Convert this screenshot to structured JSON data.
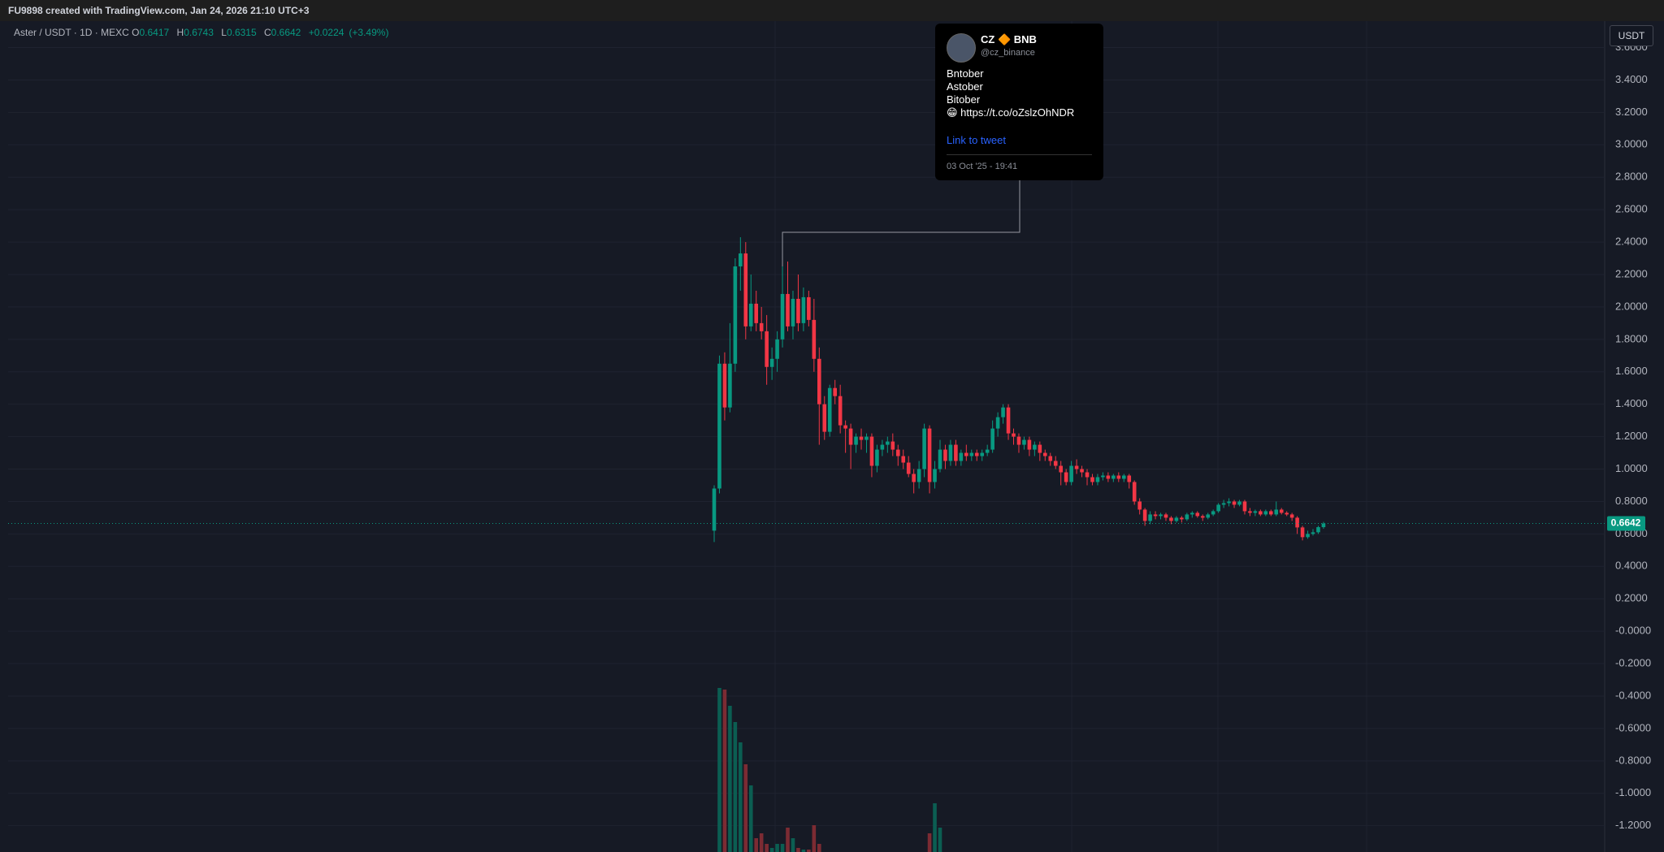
{
  "header": {
    "caption": "FU9898 created with TradingView.com, Jan 24, 2026 21:10 UTC+3"
  },
  "chart_data": {
    "type": "candlestick",
    "symbol": "Aster / USDT · 1D · MEXC",
    "legend": {
      "open_label": "O",
      "open": 0.6417,
      "high_label": "H",
      "high": 0.6743,
      "low_label": "L",
      "low": 0.6315,
      "close_label": "C",
      "close": 0.6642,
      "change": "+0.0224",
      "change_pct": "(+3.49%)"
    },
    "currency": "USDT",
    "colors": {
      "up": "#089981",
      "down": "#f23645",
      "volume_up": "#0b5e52",
      "volume_down": "#7c2b33"
    },
    "grid": true,
    "ylim": [
      -1.362,
      3.763
    ],
    "yticks": [
      {
        "value": 3.6,
        "label": "3.6000"
      },
      {
        "value": 3.4,
        "label": "3.4000"
      },
      {
        "value": 3.2,
        "label": "3.2000"
      },
      {
        "value": 3.0,
        "label": "3.0000"
      },
      {
        "value": 2.8,
        "label": "2.8000"
      },
      {
        "value": 2.6,
        "label": "2.6000"
      },
      {
        "value": 2.4,
        "label": "2.4000"
      },
      {
        "value": 2.2,
        "label": "2.2000"
      },
      {
        "value": 2.0,
        "label": "2.0000"
      },
      {
        "value": 1.8,
        "label": "1.8000"
      },
      {
        "value": 1.6,
        "label": "1.6000"
      },
      {
        "value": 1.4,
        "label": "1.4000"
      },
      {
        "value": 1.2,
        "label": "1.2000"
      },
      {
        "value": 1.0,
        "label": "1.0000"
      },
      {
        "value": 0.8,
        "label": "0.8000"
      },
      {
        "value": 0.6,
        "label": "0.6000"
      },
      {
        "value": 0.4,
        "label": "0.4000"
      },
      {
        "value": 0.2,
        "label": "0.2000"
      },
      {
        "value": 0,
        "label": "-0.0000"
      },
      {
        "value": -0.2,
        "label": "-0.2000"
      },
      {
        "value": -0.4,
        "label": "-0.4000"
      },
      {
        "value": -0.6,
        "label": "-0.6000"
      },
      {
        "value": -0.8,
        "label": "-0.8000"
      },
      {
        "value": -1.0,
        "label": "-1.0000"
      },
      {
        "value": -1.2,
        "label": "-1.2000"
      }
    ],
    "candles": [
      [
        0.62,
        0.9,
        0.55,
        0.88
      ],
      [
        0.88,
        1.7,
        0.85,
        1.65
      ],
      [
        1.65,
        1.72,
        1.3,
        1.38
      ],
      [
        1.38,
        1.9,
        1.35,
        1.65
      ],
      [
        1.65,
        2.3,
        1.6,
        2.25
      ],
      [
        2.25,
        2.43,
        2.1,
        2.33
      ],
      [
        2.33,
        2.4,
        1.8,
        1.88
      ],
      [
        1.88,
        2.2,
        1.85,
        2.02
      ],
      [
        2.02,
        2.1,
        1.85,
        1.9
      ],
      [
        1.9,
        2.0,
        1.8,
        1.85
      ],
      [
        1.85,
        1.95,
        1.52,
        1.63
      ],
      [
        1.63,
        1.75,
        1.55,
        1.68
      ],
      [
        1.68,
        1.85,
        1.6,
        1.8
      ],
      [
        1.8,
        2.25,
        1.75,
        2.08
      ],
      [
        2.08,
        2.28,
        1.85,
        1.88
      ],
      [
        1.88,
        2.1,
        1.8,
        2.05
      ],
      [
        2.05,
        2.2,
        1.85,
        1.9
      ],
      [
        1.9,
        2.12,
        1.85,
        2.06
      ],
      [
        2.06,
        2.1,
        1.88,
        1.92
      ],
      [
        1.92,
        2.05,
        1.6,
        1.68
      ],
      [
        1.68,
        1.75,
        1.15,
        1.4
      ],
      [
        1.4,
        1.45,
        1.18,
        1.23
      ],
      [
        1.23,
        1.52,
        1.2,
        1.5
      ],
      [
        1.5,
        1.55,
        1.4,
        1.45
      ],
      [
        1.45,
        1.52,
        1.22,
        1.27
      ],
      [
        1.27,
        1.3,
        1.1,
        1.25
      ],
      [
        1.25,
        1.28,
        1.0,
        1.15
      ],
      [
        1.15,
        1.22,
        1.1,
        1.2
      ],
      [
        1.2,
        1.25,
        1.12,
        1.18
      ],
      [
        1.18,
        1.22,
        1.1,
        1.2
      ],
      [
        1.2,
        1.22,
        0.95,
        1.02
      ],
      [
        1.02,
        1.15,
        0.98,
        1.12
      ],
      [
        1.12,
        1.18,
        1.08,
        1.15
      ],
      [
        1.15,
        1.2,
        1.1,
        1.17
      ],
      [
        1.17,
        1.22,
        1.08,
        1.12
      ],
      [
        1.12,
        1.15,
        1.02,
        1.08
      ],
      [
        1.08,
        1.12,
        1.0,
        1.04
      ],
      [
        1.04,
        1.08,
        0.95,
        0.97
      ],
      [
        0.97,
        1.0,
        0.85,
        0.92
      ],
      [
        0.92,
        1.05,
        0.88,
        1.0
      ],
      [
        1.0,
        1.28,
        0.95,
        1.25
      ],
      [
        1.25,
        1.27,
        0.85,
        0.92
      ],
      [
        0.92,
        1.05,
        0.88,
        1.0
      ],
      [
        1.0,
        1.18,
        0.98,
        1.12
      ],
      [
        1.12,
        1.15,
        1.0,
        1.05
      ],
      [
        1.05,
        1.18,
        1.02,
        1.15
      ],
      [
        1.15,
        1.18,
        1.02,
        1.05
      ],
      [
        1.05,
        1.12,
        1.02,
        1.1
      ],
      [
        1.1,
        1.15,
        1.05,
        1.08
      ],
      [
        1.08,
        1.12,
        1.05,
        1.1
      ],
      [
        1.1,
        1.12,
        1.05,
        1.08
      ],
      [
        1.08,
        1.12,
        1.05,
        1.1
      ],
      [
        1.1,
        1.15,
        1.08,
        1.12
      ],
      [
        1.12,
        1.3,
        1.1,
        1.25
      ],
      [
        1.25,
        1.35,
        1.2,
        1.32
      ],
      [
        1.32,
        1.4,
        1.28,
        1.38
      ],
      [
        1.38,
        1.4,
        1.18,
        1.22
      ],
      [
        1.22,
        1.25,
        1.15,
        1.2
      ],
      [
        1.2,
        1.22,
        1.1,
        1.15
      ],
      [
        1.15,
        1.2,
        1.12,
        1.18
      ],
      [
        1.18,
        1.2,
        1.08,
        1.12
      ],
      [
        1.12,
        1.17,
        1.08,
        1.15
      ],
      [
        1.15,
        1.17,
        1.05,
        1.1
      ],
      [
        1.1,
        1.12,
        1.05,
        1.08
      ],
      [
        1.08,
        1.1,
        1.02,
        1.05
      ],
      [
        1.05,
        1.08,
        1.0,
        1.02
      ],
      [
        1.02,
        1.05,
        0.9,
        0.98
      ],
      [
        0.98,
        1.0,
        0.9,
        0.92
      ],
      [
        0.92,
        1.05,
        0.9,
        1.02
      ],
      [
        1.02,
        1.06,
        0.97,
        1.0
      ],
      [
        1.0,
        1.02,
        0.95,
        0.98
      ],
      [
        0.98,
        1.0,
        0.9,
        0.95
      ],
      [
        0.95,
        0.97,
        0.9,
        0.92
      ],
      [
        0.92,
        0.97,
        0.9,
        0.95
      ],
      [
        0.95,
        0.98,
        0.93,
        0.96
      ],
      [
        0.96,
        0.98,
        0.92,
        0.94
      ],
      [
        0.94,
        0.97,
        0.92,
        0.96
      ],
      [
        0.96,
        0.98,
        0.92,
        0.94
      ],
      [
        0.94,
        0.97,
        0.92,
        0.96
      ],
      [
        0.96,
        0.97,
        0.88,
        0.92
      ],
      [
        0.92,
        0.93,
        0.78,
        0.8
      ],
      [
        0.8,
        0.82,
        0.72,
        0.75
      ],
      [
        0.75,
        0.76,
        0.65,
        0.68
      ],
      [
        0.68,
        0.74,
        0.66,
        0.72
      ],
      [
        0.72,
        0.74,
        0.69,
        0.71
      ],
      [
        0.71,
        0.73,
        0.69,
        0.72
      ],
      [
        0.72,
        0.73,
        0.68,
        0.7
      ],
      [
        0.7,
        0.71,
        0.66,
        0.68
      ],
      [
        0.68,
        0.71,
        0.67,
        0.7
      ],
      [
        0.7,
        0.71,
        0.67,
        0.69
      ],
      [
        0.69,
        0.73,
        0.68,
        0.72
      ],
      [
        0.72,
        0.74,
        0.7,
        0.73
      ],
      [
        0.73,
        0.74,
        0.7,
        0.71
      ],
      [
        0.71,
        0.72,
        0.68,
        0.7
      ],
      [
        0.7,
        0.73,
        0.69,
        0.72
      ],
      [
        0.72,
        0.75,
        0.71,
        0.74
      ],
      [
        0.74,
        0.79,
        0.73,
        0.78
      ],
      [
        0.78,
        0.81,
        0.76,
        0.79
      ],
      [
        0.79,
        0.82,
        0.77,
        0.8
      ],
      [
        0.8,
        0.81,
        0.76,
        0.78
      ],
      [
        0.78,
        0.81,
        0.77,
        0.8
      ],
      [
        0.8,
        0.81,
        0.72,
        0.74
      ],
      [
        0.74,
        0.76,
        0.71,
        0.73
      ],
      [
        0.73,
        0.75,
        0.71,
        0.74
      ],
      [
        0.74,
        0.75,
        0.71,
        0.72
      ],
      [
        0.72,
        0.75,
        0.71,
        0.74
      ],
      [
        0.74,
        0.75,
        0.71,
        0.72
      ],
      [
        0.72,
        0.8,
        0.71,
        0.75
      ],
      [
        0.75,
        0.76,
        0.72,
        0.73
      ],
      [
        0.73,
        0.74,
        0.71,
        0.72
      ],
      [
        0.72,
        0.73,
        0.68,
        0.7
      ],
      [
        0.7,
        0.71,
        0.6,
        0.64
      ],
      [
        0.64,
        0.65,
        0.56,
        0.58
      ],
      [
        0.58,
        0.62,
        0.57,
        0.6
      ],
      [
        0.6,
        0.63,
        0.59,
        0.61
      ],
      [
        0.61,
        0.65,
        0.6,
        0.6417
      ],
      [
        0.6417,
        0.6743,
        0.6315,
        0.6642
      ]
    ],
    "volume_lim": [
      0,
      300
    ],
    "volume": [
      0,
      202,
      200,
      180,
      160,
      135,
      108,
      82,
      17,
      23,
      10,
      5,
      10,
      10,
      30,
      17,
      5,
      3,
      3,
      33,
      10,
      0,
      0,
      0,
      0,
      0,
      0,
      0,
      0,
      0,
      0,
      0,
      0,
      0,
      0,
      0,
      0,
      0,
      0,
      0,
      0,
      23,
      60,
      30,
      0,
      0,
      0,
      0,
      0,
      0,
      0,
      0,
      0,
      0,
      0,
      0,
      0,
      0,
      0,
      0,
      0,
      0,
      0,
      0,
      0,
      0,
      0,
      0,
      0,
      0,
      0,
      0,
      0,
      0,
      0,
      0,
      0,
      0,
      0,
      0,
      0,
      0,
      0,
      0,
      0,
      0,
      0,
      0,
      0,
      0,
      0,
      0,
      0,
      0,
      0,
      0,
      0,
      0,
      0,
      0,
      0,
      0,
      0,
      0,
      0,
      0,
      0,
      0,
      0,
      0,
      0,
      0,
      0,
      0,
      0,
      0,
      0
    ],
    "annotation": {
      "candle": 13,
      "name": "CZ 🔶 BNB",
      "handle": "@cz_binance",
      "lines": [
        "Bntober",
        "Astober",
        "Bitober",
        "😁 https://t.co/oZslzOhNDR"
      ],
      "link": "Link to tweet",
      "date": "03 Oct '25 - 19:41"
    }
  }
}
